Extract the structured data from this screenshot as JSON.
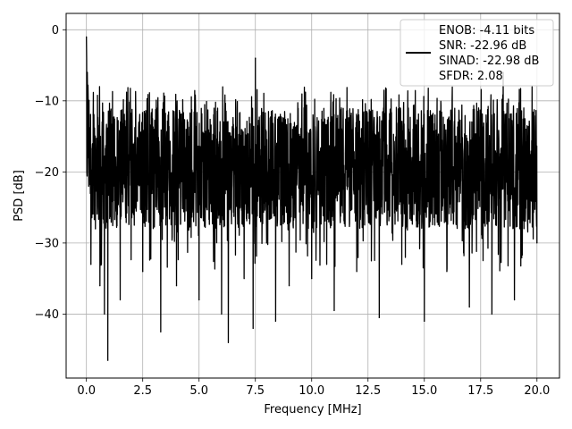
{
  "chart_data": {
    "type": "line",
    "title": "",
    "xlabel": "Frequency [MHz]",
    "ylabel": "PSD [dB]",
    "xlim": [
      -0.9,
      21.0
    ],
    "ylim": [
      -49,
      2.3
    ],
    "xticks": [
      0.0,
      2.5,
      5.0,
      7.5,
      10.0,
      12.5,
      15.0,
      17.5,
      20.0
    ],
    "xtick_labels": [
      "0.0",
      "2.5",
      "5.0",
      "7.5",
      "10.0",
      "12.5",
      "15.0",
      "17.5",
      "20.0"
    ],
    "yticks": [
      0,
      -10,
      -20,
      -30,
      -40
    ],
    "ytick_labels": [
      "0",
      "−10",
      "−20",
      "−30",
      "−40"
    ],
    "grid": true,
    "legend_position": "top-right",
    "legend": {
      "lines": [
        "ENOB: -4.11 bits",
        "SNR: -22.96 dB",
        "SINAD: -22.98 dB",
        "SFDR: 2.08"
      ]
    },
    "series": [
      {
        "color": "#000000",
        "x": [
          0.0,
          0.02,
          0.04,
          0.06,
          0.08,
          0.1,
          0.15,
          0.2,
          0.3,
          0.4,
          0.5,
          0.6,
          0.7,
          0.8,
          0.9,
          0.95,
          1.0,
          1.5,
          2.0,
          2.5,
          3.0,
          3.3,
          3.5,
          4.0,
          4.5,
          5.0,
          5.5,
          6.0,
          6.3,
          6.5,
          7.0,
          7.4,
          7.5,
          8.0,
          8.4,
          8.5,
          9.0,
          9.5,
          10.0,
          10.5,
          11.0,
          11.5,
          12.0,
          12.5,
          13.0,
          13.5,
          14.0,
          14.5,
          15.0,
          15.5,
          16.0,
          16.5,
          17.0,
          17.5,
          18.0,
          18.5,
          19.0,
          19.5,
          20.0
        ],
        "y": [
          -1.0,
          -20.0,
          -6.0,
          -18.0,
          -10.0,
          -22.0,
          -14.0,
          -33.0,
          -12.0,
          -28.0,
          -16.0,
          -36.0,
          -13.0,
          -40.0,
          -20.0,
          -46.5,
          -15.0,
          -38.0,
          -12.0,
          -34.0,
          -14.0,
          -42.5,
          -18.0,
          -36.0,
          -13.0,
          -38.0,
          -16.0,
          -40.0,
          -44.0,
          -18.0,
          -35.0,
          -42.0,
          -4.0,
          -30.0,
          -41.0,
          -14.0,
          -36.0,
          -15.0,
          -35.0,
          -13.0,
          -39.5,
          -16.0,
          -34.0,
          -13.0,
          -40.5,
          -15.0,
          -33.0,
          -14.0,
          -41.0,
          -16.0,
          -34.0,
          -13.0,
          -39.0,
          -15.0,
          -40.0,
          -6.0,
          -38.0,
          -14.0,
          -30.0
        ]
      }
    ]
  }
}
